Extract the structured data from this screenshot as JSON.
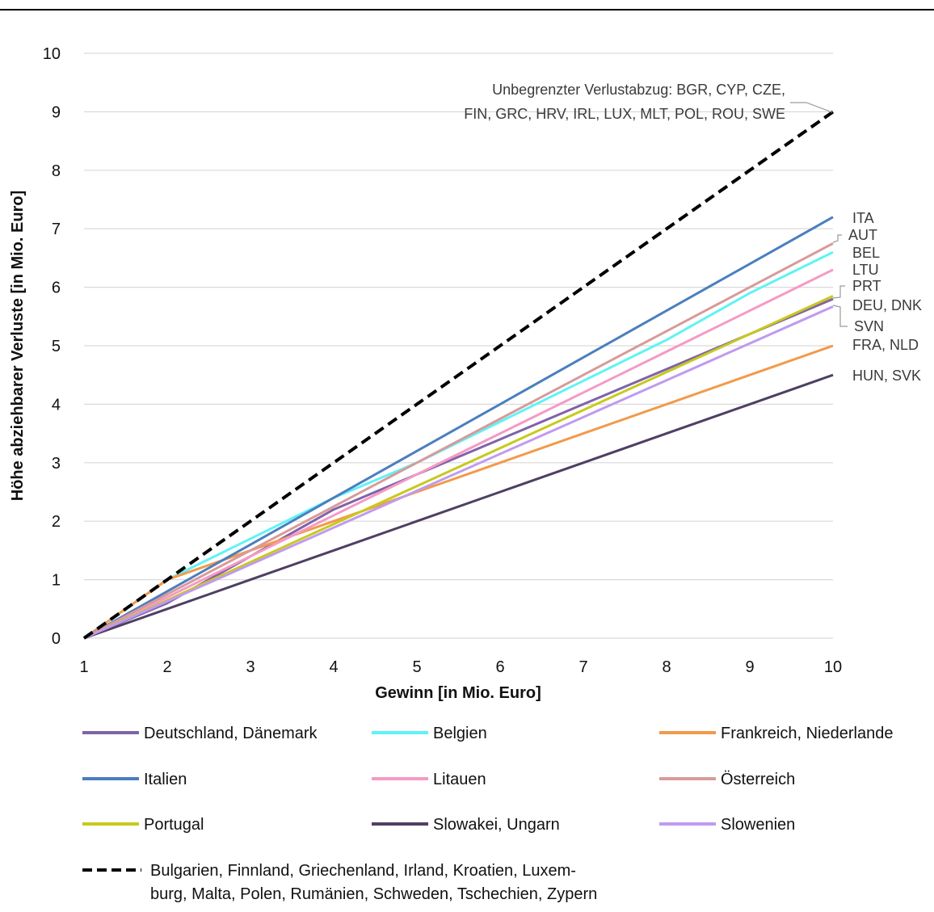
{
  "chart_data": {
    "type": "line",
    "title": "",
    "xlabel": "Gewinn [in Mio. Euro]",
    "ylabel": "Höhe abziehbarer Verluste [in Mio. Euro]",
    "xlim": [
      1,
      10
    ],
    "ylim": [
      0,
      10
    ],
    "x_ticks": [
      "1",
      "2",
      "3",
      "4",
      "5",
      "6",
      "7",
      "8",
      "9",
      "10"
    ],
    "y_ticks": [
      "0",
      "1",
      "2",
      "3",
      "4",
      "5",
      "6",
      "7",
      "8",
      "9",
      "10"
    ],
    "grid": "horizontal",
    "legend_position": "bottom",
    "x": [
      1,
      2,
      3,
      4,
      5,
      6,
      7,
      8,
      9,
      10
    ],
    "series": [
      {
        "name": "Deutschland, Dänemark",
        "color": "#7f63a8",
        "dash": false,
        "label": "DEU, DNK",
        "values": [
          0,
          0.6,
          1.4,
          2.2,
          2.8,
          3.4,
          4.0,
          4.6,
          5.2,
          5.8
        ]
      },
      {
        "name": "Belgien",
        "color": "#5ff3f5",
        "dash": false,
        "label": "BEL",
        "values": [
          0,
          1.0,
          1.7,
          2.4,
          3.0,
          3.7,
          4.4,
          5.1,
          5.9,
          6.6
        ]
      },
      {
        "name": "Frankreich, Niederlande",
        "color": "#f29a4a",
        "dash": false,
        "label": "FRA, NLD",
        "values": [
          0,
          1.0,
          1.5,
          2.0,
          2.5,
          3.0,
          3.5,
          4.0,
          4.5,
          5.0
        ]
      },
      {
        "name": "Italien",
        "color": "#4a7fbe",
        "dash": false,
        "label": "ITA",
        "values": [
          0,
          0.8,
          1.6,
          2.4,
          3.2,
          4.0,
          4.8,
          5.6,
          6.4,
          7.2
        ]
      },
      {
        "name": "Litauen",
        "color": "#f59ac4",
        "dash": false,
        "label": "LTU",
        "values": [
          0,
          0.7,
          1.4,
          2.1,
          2.8,
          3.5,
          4.2,
          4.9,
          5.6,
          6.3
        ]
      },
      {
        "name": "Österreich",
        "color": "#d89a9a",
        "dash": false,
        "label": "AUT",
        "values": [
          0,
          0.75,
          1.5,
          2.25,
          3.0,
          3.75,
          4.5,
          5.25,
          6.0,
          6.75
        ]
      },
      {
        "name": "Portugal",
        "color": "#c8c91c",
        "dash": false,
        "label": "PRT",
        "values": [
          0,
          0.65,
          1.3,
          1.95,
          2.6,
          3.25,
          3.9,
          4.55,
          5.2,
          5.85
        ]
      },
      {
        "name": "Slowakei, Ungarn",
        "color": "#4f3f63",
        "dash": false,
        "label": "HUN, SVK",
        "values": [
          0,
          0.5,
          1.0,
          1.5,
          2.0,
          2.5,
          3.0,
          3.5,
          4.0,
          4.5
        ]
      },
      {
        "name": "Slowenien",
        "color": "#c09af0",
        "dash": false,
        "label": "SVN",
        "values": [
          0,
          0.63,
          1.26,
          1.89,
          2.52,
          3.15,
          3.78,
          4.41,
          5.04,
          5.67
        ]
      },
      {
        "name": "Bulgarien, Finnland, Griechenland, Irland, Kroatien, Luxemburg, Malta, Polen, Rumänien, Schweden, Tschechien, Zypern",
        "color": "#000000",
        "dash": true,
        "values": [
          0,
          1,
          2,
          3,
          4,
          5,
          6,
          7,
          8,
          9
        ]
      }
    ],
    "annotations": {
      "unlimited_line1": "Unbegrenzter Verlustabzug: BGR, CYP, CZE,",
      "unlimited_line2": "FIN, GRC, HRV, IRL, LUX, MLT, POL, ROU, SWE",
      "ita": "ITA",
      "aut": "AUT",
      "bel": "BEL",
      "ltu": "LTU",
      "prt": "PRT",
      "deu_dnk": "DEU, DNK",
      "svn": "SVN",
      "fra_nld": "FRA, NLD",
      "hun_svk": "HUN, SVK"
    },
    "legend": {
      "row1": [
        "Deutschland, Dänemark",
        "Belgien",
        "Frankreich, Niederlande"
      ],
      "row2": [
        "Italien",
        "Litauen",
        "Österreich"
      ],
      "row3": [
        "Portugal",
        "Slowakei, Ungarn",
        "Slowenien"
      ],
      "dashed_line1": "Bulgarien, Finnland, Griechenland, Irland, Kroatien, Luxem-",
      "dashed_line2": "burg, Malta, Polen, Rumänien, Schweden, Tschechien, Zypern"
    }
  }
}
